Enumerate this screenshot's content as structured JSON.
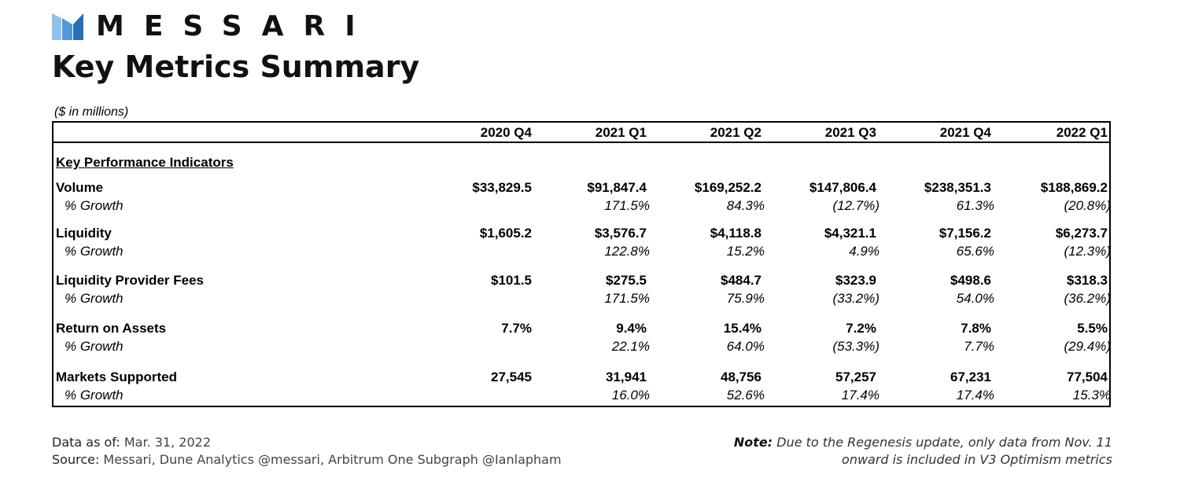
{
  "brand": {
    "name": "MESSARI",
    "logo_icon": "messari-m-icon",
    "colors": {
      "logo_light": "#8fc1ea",
      "logo_mid": "#4e9ad6",
      "logo_dark": "#2a6fb0"
    }
  },
  "title": "Key Metrics Summary",
  "units_note": "($ in millions)",
  "chart_data": {
    "type": "table",
    "title": "Key Metrics Summary",
    "columns": [
      "2020 Q4",
      "2021 Q1",
      "2021 Q2",
      "2021 Q3",
      "2021 Q4",
      "2022 Q1"
    ],
    "section": "Key Performance Indicators",
    "rows": [
      {
        "label": "Volume",
        "values": [
          "$33,829.5",
          "$91,847.4",
          "$169,252.2",
          "$147,806.4",
          "$238,351.3",
          "$188,869.2"
        ],
        "growth_label": "% Growth",
        "growth": [
          "",
          "171.5%",
          "84.3%",
          "(12.7%)",
          "61.3%",
          "(20.8%)"
        ]
      },
      {
        "label": "Liquidity",
        "values": [
          "$1,605.2",
          "$3,576.7",
          "$4,118.8",
          "$4,321.1",
          "$7,156.2",
          "$6,273.7"
        ],
        "growth_label": "% Growth",
        "growth": [
          "",
          "122.8%",
          "15.2%",
          "4.9%",
          "65.6%",
          "(12.3%)"
        ]
      },
      {
        "label": "Liquidity Provider Fees",
        "values": [
          "$101.5",
          "$275.5",
          "$484.7",
          "$323.9",
          "$498.6",
          "$318.3"
        ],
        "growth_label": "% Growth",
        "growth": [
          "",
          "171.5%",
          "75.9%",
          "(33.2%)",
          "54.0%",
          "(36.2%)"
        ]
      },
      {
        "label": "Return on Assets",
        "values": [
          "7.7%",
          "9.4%",
          "15.4%",
          "7.2%",
          "7.8%",
          "5.5%"
        ],
        "growth_label": "% Growth",
        "growth": [
          "",
          "22.1%",
          "64.0%",
          "(53.3%)",
          "7.7%",
          "(29.4%)"
        ]
      },
      {
        "label": "Markets Supported",
        "values": [
          "27,545",
          "31,941",
          "48,756",
          "57,257",
          "67,231",
          "77,504"
        ],
        "growth_label": "% Growth",
        "growth": [
          "",
          "16.0%",
          "52.6%",
          "17.4%",
          "17.4%",
          "15.3%"
        ]
      }
    ]
  },
  "footer": {
    "data_as_of_label": "Data as of:",
    "data_as_of_value": " Mar. 31, 2022",
    "source_label": "Source:",
    "source_value": " Messari, Dune Analytics @messari, Arbitrum One Subgraph @Ianlapham",
    "note_label": "Note:",
    "note_line1": " Due to the Regenesis update, only data from Nov. 11",
    "note_line2": "onward is included in V3 Optimism metrics"
  }
}
